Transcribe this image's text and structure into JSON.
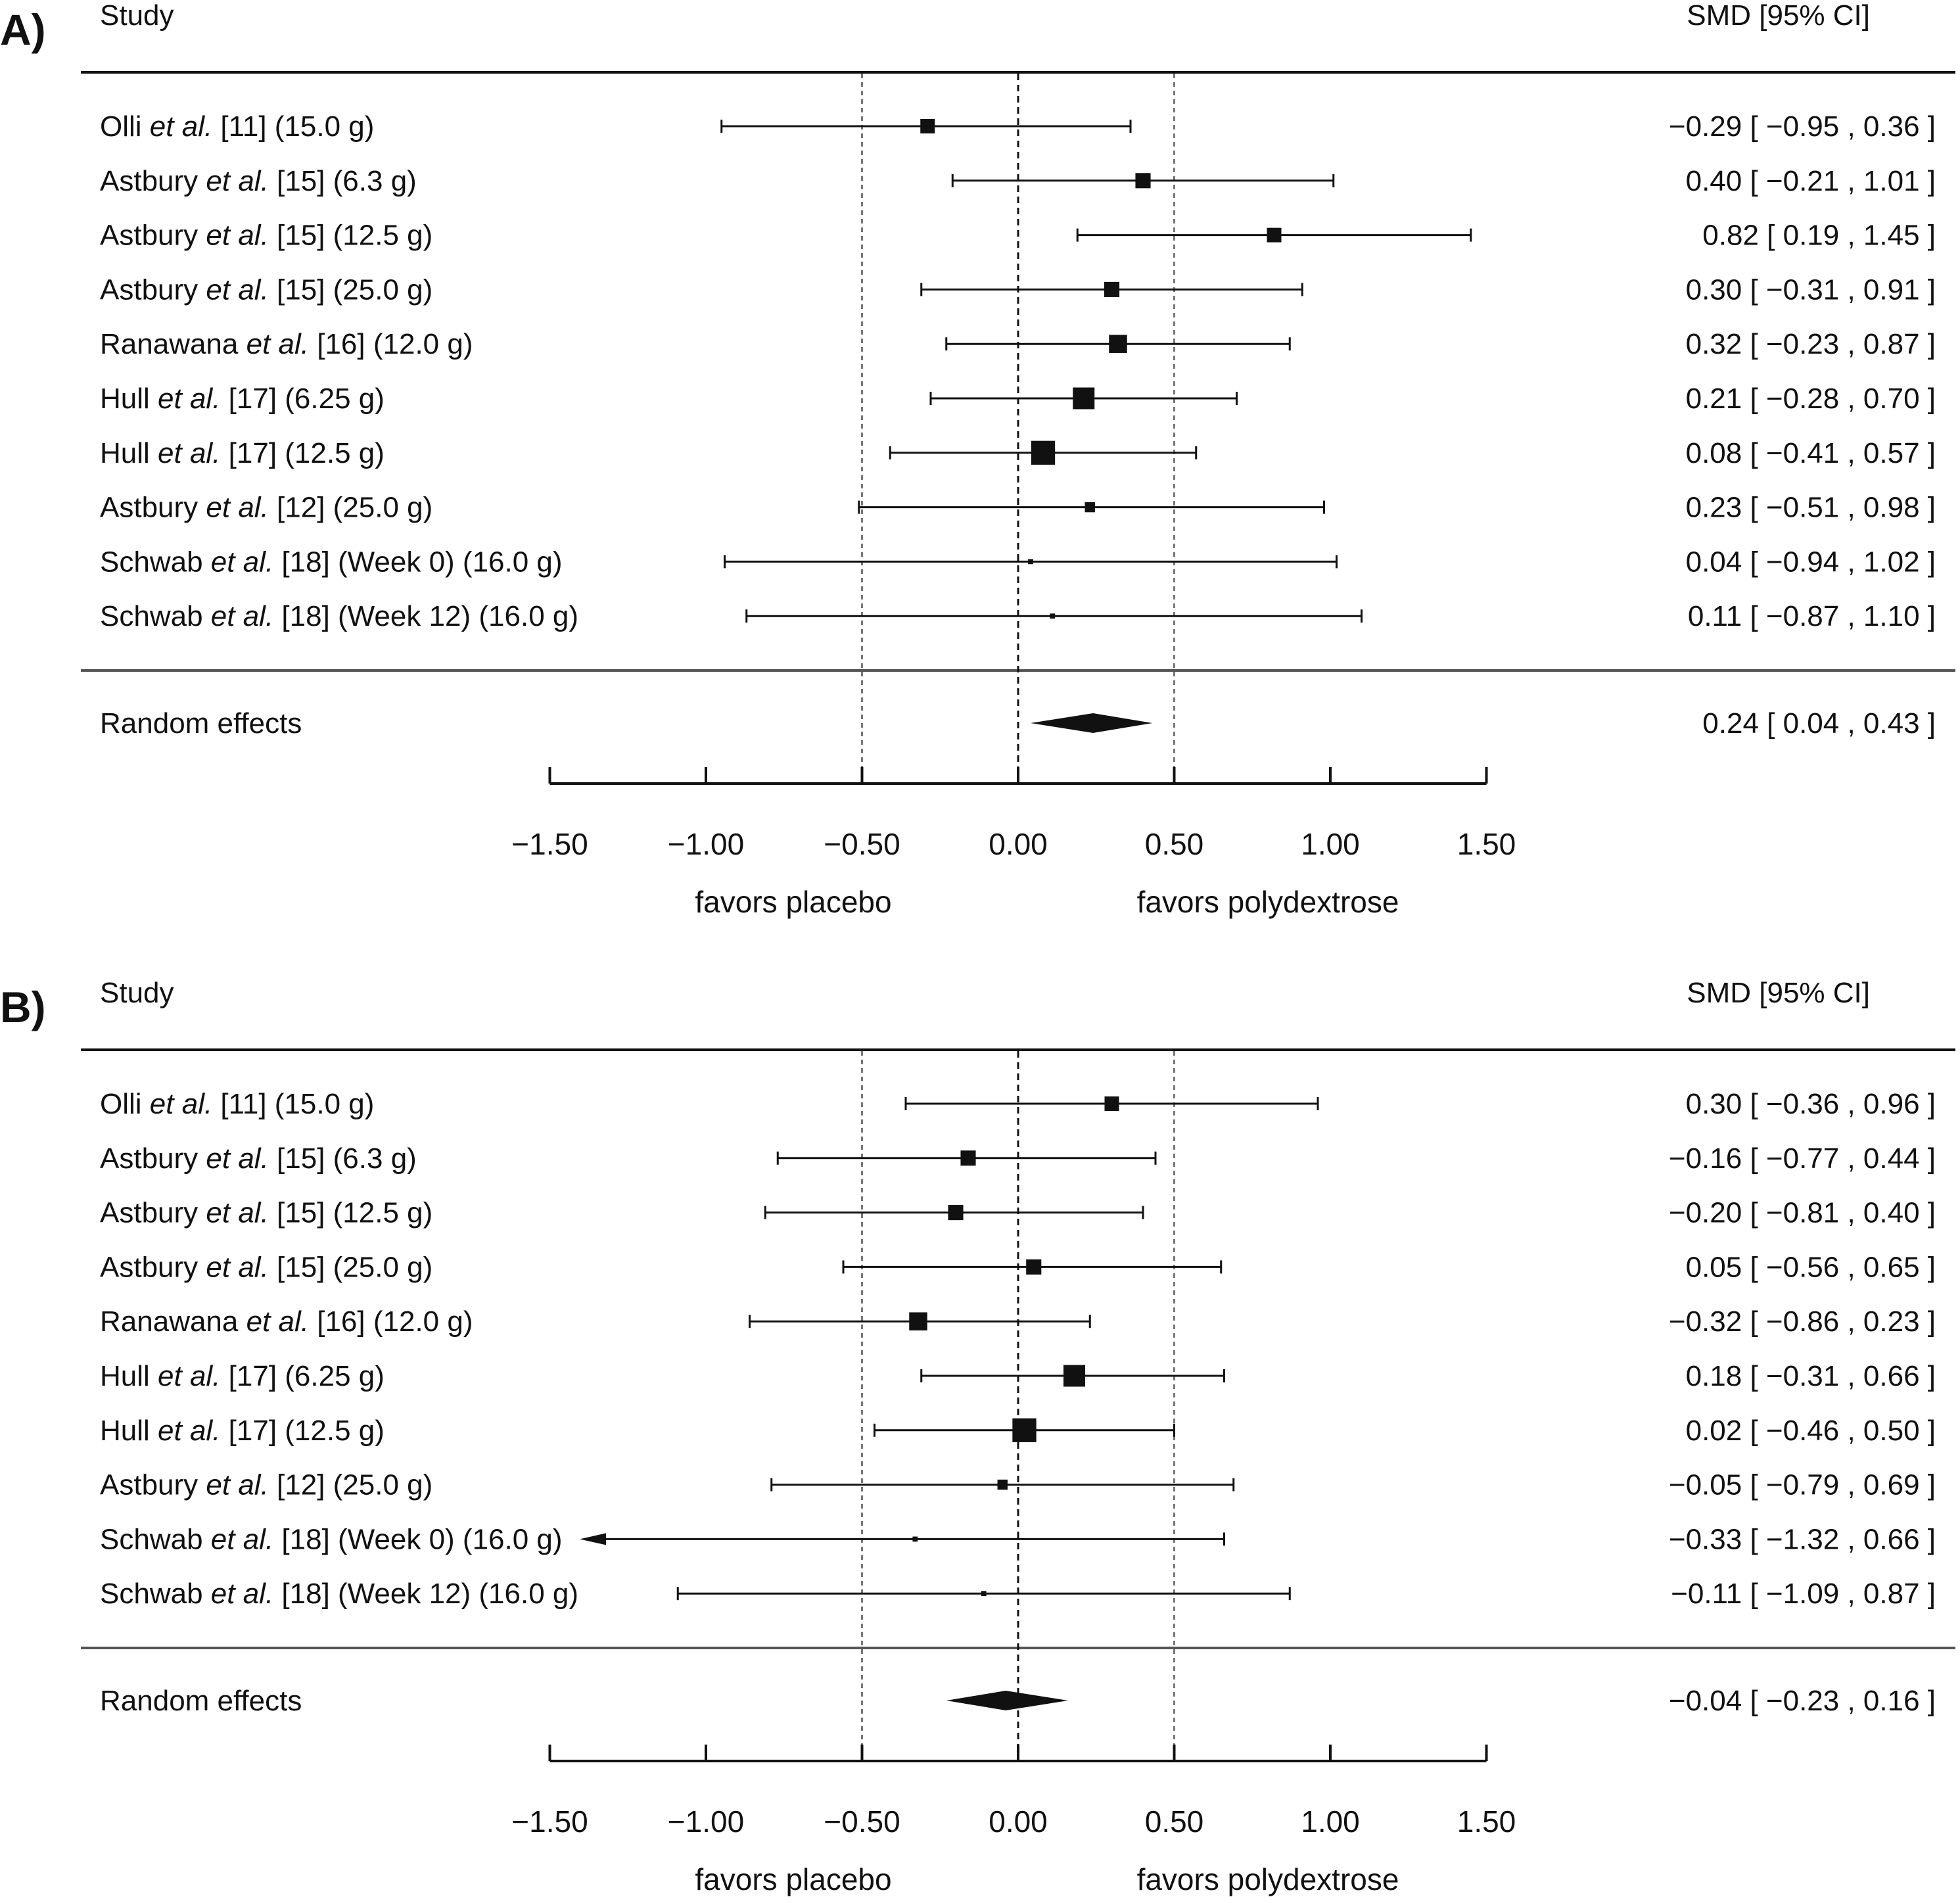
{
  "chart_data": [
    {
      "type": "forest",
      "panel_label": "A)",
      "column_study": "Study",
      "column_effect": "SMD [95% CI]",
      "x_ticks": [
        "−1.50",
        "−1.00",
        "−0.50",
        "0.00",
        "0.50",
        "1.00",
        "1.50"
      ],
      "x_tick_values": [
        -1.5,
        -1.0,
        -0.5,
        0.0,
        0.5,
        1.0,
        1.5
      ],
      "xlim": [
        -1.5,
        1.5
      ],
      "reference_lines": [
        -0.5,
        0.0,
        0.5
      ],
      "favors_left": "favors placebo",
      "favors_right": "favors polydextrose",
      "studies": [
        {
          "author": "Olli",
          "etal": "et al.",
          "rest": "[11] (15.0 g)",
          "smd": -0.29,
          "lo": -0.95,
          "hi": 0.36,
          "weight": 1.0,
          "ci_text": "−0.29 [ −0.95 , 0.36 ]"
        },
        {
          "author": "Astbury",
          "etal": "et al.",
          "rest": "[15] (6.3 g)",
          "smd": 0.4,
          "lo": -0.21,
          "hi": 1.01,
          "weight": 1.05,
          "ci_text": "0.40 [ −0.21 , 1.01 ]"
        },
        {
          "author": "Astbury",
          "etal": "et al.",
          "rest": "[15] (12.5 g)",
          "smd": 0.82,
          "lo": 0.19,
          "hi": 1.45,
          "weight": 1.0,
          "ci_text": "0.82 [  0.19 , 1.45 ]"
        },
        {
          "author": "Astbury",
          "etal": "et al.",
          "rest": "[15] (25.0 g)",
          "smd": 0.3,
          "lo": -0.31,
          "hi": 0.91,
          "weight": 1.05,
          "ci_text": "0.30 [ −0.31 , 0.91 ]"
        },
        {
          "author": "Ranawana",
          "etal": "et al.",
          "rest": "[16] (12.0 g)",
          "smd": 0.32,
          "lo": -0.23,
          "hi": 0.87,
          "weight": 1.25,
          "ci_text": "0.32 [ −0.23 , 0.87 ]"
        },
        {
          "author": "Hull",
          "etal": "et al.",
          "rest": "[17] (6.25 g)",
          "smd": 0.21,
          "lo": -0.28,
          "hi": 0.7,
          "weight": 1.5,
          "ci_text": "0.21 [ −0.28 , 0.70 ]"
        },
        {
          "author": "Hull",
          "etal": "et al.",
          "rest": "[17] (12.5 g)",
          "smd": 0.08,
          "lo": -0.41,
          "hi": 0.57,
          "weight": 1.65,
          "ci_text": "0.08 [ −0.41 , 0.57 ]"
        },
        {
          "author": "Astbury",
          "etal": "et al.",
          "rest": "[12] (25.0 g)",
          "smd": 0.23,
          "lo": -0.51,
          "hi": 0.98,
          "weight": 0.7,
          "ci_text": "0.23 [ −0.51 , 0.98 ]"
        },
        {
          "author": "Schwab",
          "etal": "et al.",
          "rest": "[18] (Week 0) (16.0 g)",
          "smd": 0.04,
          "lo": -0.94,
          "hi": 1.02,
          "weight": 0.35,
          "ci_text": "0.04 [ −0.94 , 1.02 ]"
        },
        {
          "author": "Schwab",
          "etal": "et al.",
          "rest": "[18] (Week 12) (16.0 g)",
          "smd": 0.11,
          "lo": -0.87,
          "hi": 1.1,
          "weight": 0.35,
          "ci_text": "0.11 [ −0.87 , 1.10 ]"
        }
      ],
      "summary": {
        "label": "Random effects",
        "smd": 0.24,
        "lo": 0.04,
        "hi": 0.43,
        "ci_text": "0.24 [  0.04 , 0.43 ]"
      }
    },
    {
      "type": "forest",
      "panel_label": "B)",
      "column_study": "Study",
      "column_effect": "SMD [95% CI]",
      "x_ticks": [
        "−1.50",
        "−1.00",
        "−0.50",
        "0.00",
        "0.50",
        "1.00",
        "1.50"
      ],
      "x_tick_values": [
        -1.5,
        -1.0,
        -0.5,
        0.0,
        0.5,
        1.0,
        1.5
      ],
      "xlim": [
        -1.5,
        1.5
      ],
      "reference_lines": [
        -0.5,
        0.0,
        0.5
      ],
      "favors_left": "favors placebo",
      "favors_right": "favors polydextrose",
      "studies": [
        {
          "author": "Olli",
          "etal": "et al.",
          "rest": "[11] (15.0 g)",
          "smd": 0.3,
          "lo": -0.36,
          "hi": 0.96,
          "weight": 1.0,
          "ci_text": "0.30 [ −0.36 , 0.96 ]"
        },
        {
          "author": "Astbury",
          "etal": "et al.",
          "rest": "[15] (6.3 g)",
          "smd": -0.16,
          "lo": -0.77,
          "hi": 0.44,
          "weight": 1.05,
          "ci_text": "−0.16 [ −0.77 , 0.44 ]"
        },
        {
          "author": "Astbury",
          "etal": "et al.",
          "rest": "[15] (12.5 g)",
          "smd": -0.2,
          "lo": -0.81,
          "hi": 0.4,
          "weight": 1.05,
          "ci_text": "−0.20 [ −0.81 , 0.40 ]"
        },
        {
          "author": "Astbury",
          "etal": "et al.",
          "rest": "[15] (25.0 g)",
          "smd": 0.05,
          "lo": -0.56,
          "hi": 0.65,
          "weight": 1.05,
          "ci_text": "0.05 [ −0.56 , 0.65 ]"
        },
        {
          "author": "Ranawana",
          "etal": "et al.",
          "rest": "[16] (12.0 g)",
          "smd": -0.32,
          "lo": -0.86,
          "hi": 0.23,
          "weight": 1.25,
          "ci_text": "−0.32 [ −0.86 , 0.23 ]"
        },
        {
          "author": "Hull",
          "etal": "et al.",
          "rest": "[17] (6.25 g)",
          "smd": 0.18,
          "lo": -0.31,
          "hi": 0.66,
          "weight": 1.5,
          "ci_text": "0.18 [ −0.31 , 0.66 ]"
        },
        {
          "author": "Hull",
          "etal": "et al.",
          "rest": "[17] (12.5 g)",
          "smd": 0.02,
          "lo": -0.46,
          "hi": 0.5,
          "weight": 1.65,
          "ci_text": "0.02 [ −0.46 , 0.50 ]"
        },
        {
          "author": "Astbury",
          "etal": "et al.",
          "rest": "[12] (25.0 g)",
          "smd": -0.05,
          "lo": -0.79,
          "hi": 0.69,
          "weight": 0.7,
          "ci_text": "−0.05 [ −0.79 , 0.69 ]"
        },
        {
          "author": "Schwab",
          "etal": "et al.",
          "rest": "[18] (Week 0) (16.0 g)",
          "smd": -0.33,
          "lo": -1.32,
          "hi": 0.66,
          "weight": 0.35,
          "ci_text": "−0.33 [ −1.32 , 0.66 ]",
          "arrow_left": true
        },
        {
          "author": "Schwab",
          "etal": "et al.",
          "rest": "[18] (Week 12) (16.0 g)",
          "smd": -0.11,
          "lo": -1.09,
          "hi": 0.87,
          "weight": 0.35,
          "ci_text": "−0.11 [ −1.09 , 0.87 ]"
        }
      ],
      "summary": {
        "label": "Random effects",
        "smd": -0.04,
        "lo": -0.23,
        "hi": 0.16,
        "ci_text": "−0.04 [ −0.23 , 0.16 ]"
      }
    }
  ]
}
